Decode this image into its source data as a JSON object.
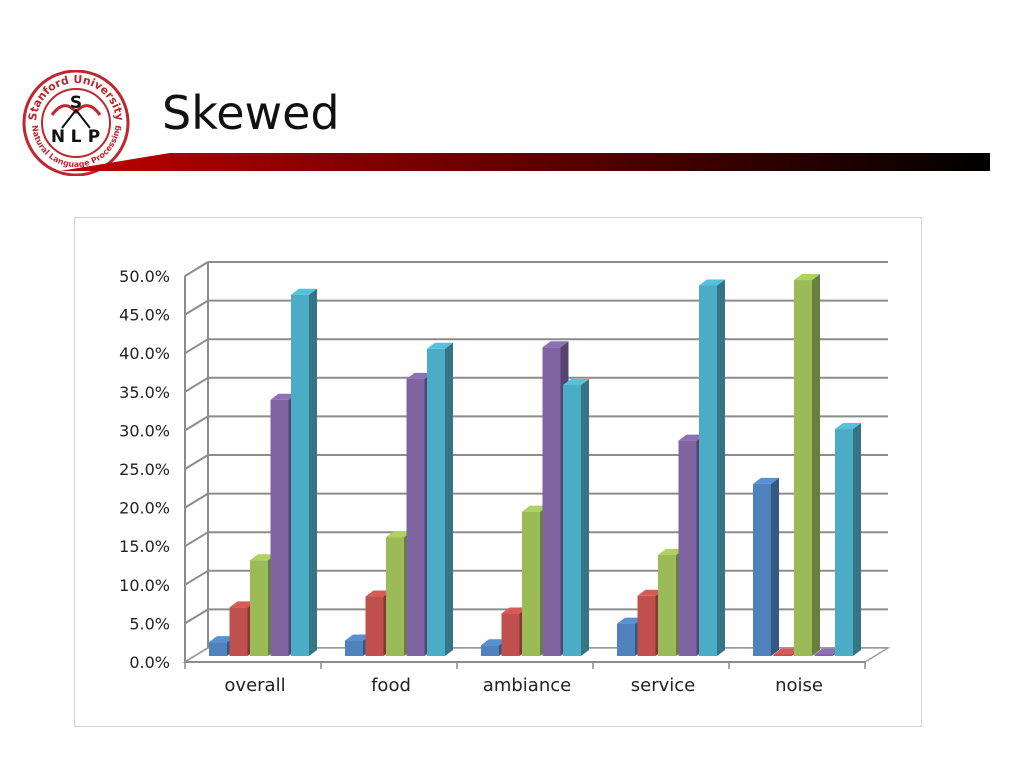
{
  "slide": {
    "title": "Skewed"
  },
  "logo": {
    "top_text": "Stanford University",
    "bottom_text": "Natural Language Processing",
    "letters": [
      "S",
      "N",
      "L",
      "P"
    ],
    "accent_color": "#c0262d"
  },
  "colors": {
    "title_bar_start": "#c00000",
    "title_bar_end": "#000000"
  },
  "chart_data": {
    "type": "bar",
    "title": "",
    "xlabel": "",
    "ylabel": "",
    "categories": [
      "overall",
      "food",
      "ambiance",
      "service",
      "noise"
    ],
    "series": [
      {
        "color": "#4f81bd",
        "values": [
          1.8,
          2.0,
          1.4,
          4.2,
          22.3
        ]
      },
      {
        "color": "#c0504d",
        "values": [
          6.3,
          7.7,
          5.5,
          7.8,
          0.2
        ]
      },
      {
        "color": "#9bbb59",
        "values": [
          12.4,
          15.4,
          18.7,
          13.1,
          48.7
        ]
      },
      {
        "color": "#8064a2",
        "values": [
          33.2,
          35.9,
          40.0,
          27.9,
          0.2
        ]
      },
      {
        "color": "#4bacc6",
        "values": [
          46.8,
          39.8,
          35.1,
          48.0,
          29.4
        ]
      }
    ],
    "ylim": [
      0,
      50
    ],
    "yticks": [
      "0.0%",
      "5.0%",
      "10.0%",
      "15.0%",
      "20.0%",
      "25.0%",
      "30.0%",
      "35.0%",
      "40.0%",
      "45.0%",
      "50.0%"
    ],
    "grid": true,
    "style": "3d-clustered-column"
  }
}
